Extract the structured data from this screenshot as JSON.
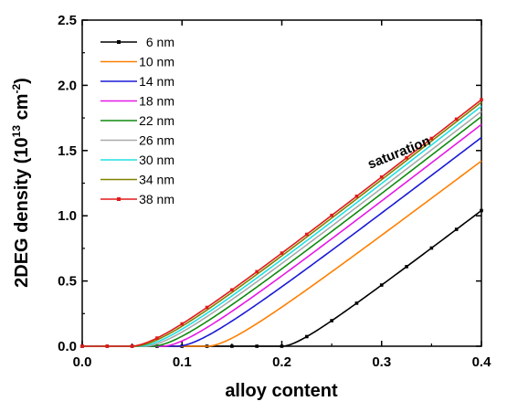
{
  "chart_data": {
    "type": "line",
    "title": "",
    "xlabel": "alloy content",
    "ylabel_main": "2DEG density (10",
    "ylabel_sup1": "13",
    "ylabel_mid": " cm",
    "ylabel_sup2": "-2",
    "ylabel_end": ")",
    "xlim": [
      0.0,
      0.4
    ],
    "ylim": [
      0.0,
      2.5
    ],
    "xticks": [
      "0.0",
      "0.1",
      "0.2",
      "0.3",
      "0.4"
    ],
    "yticks": [
      "0.0",
      "0.5",
      "1.0",
      "1.5",
      "2.0",
      "2.5"
    ],
    "grid": false,
    "legend_position": "top-left",
    "annotation": "saturation",
    "series": [
      {
        "name": "6 nm",
        "color": "#000000",
        "threshold": 0.2,
        "end": 1.04,
        "marker": true
      },
      {
        "name": "10 nm",
        "color": "#ff7f00",
        "threshold": 0.125,
        "end": 1.42,
        "marker": false
      },
      {
        "name": "14 nm",
        "color": "#1a1ad6",
        "threshold": 0.095,
        "end": 1.6,
        "marker": false
      },
      {
        "name": "18 nm",
        "color": "#e619e6",
        "threshold": 0.08,
        "end": 1.7,
        "marker": false
      },
      {
        "name": "22 nm",
        "color": "#0f8a0f",
        "threshold": 0.07,
        "end": 1.76,
        "marker": false
      },
      {
        "name": "26 nm",
        "color": "#aaaaaa",
        "threshold": 0.062,
        "end": 1.8,
        "marker": false
      },
      {
        "name": "30 nm",
        "color": "#22e0e0",
        "threshold": 0.057,
        "end": 1.84,
        "marker": false
      },
      {
        "name": "34 nm",
        "color": "#808000",
        "threshold": 0.052,
        "end": 1.87,
        "marker": false
      },
      {
        "name": "38 nm",
        "color": "#e01a1a",
        "threshold": 0.048,
        "end": 1.89,
        "marker": true
      }
    ]
  }
}
